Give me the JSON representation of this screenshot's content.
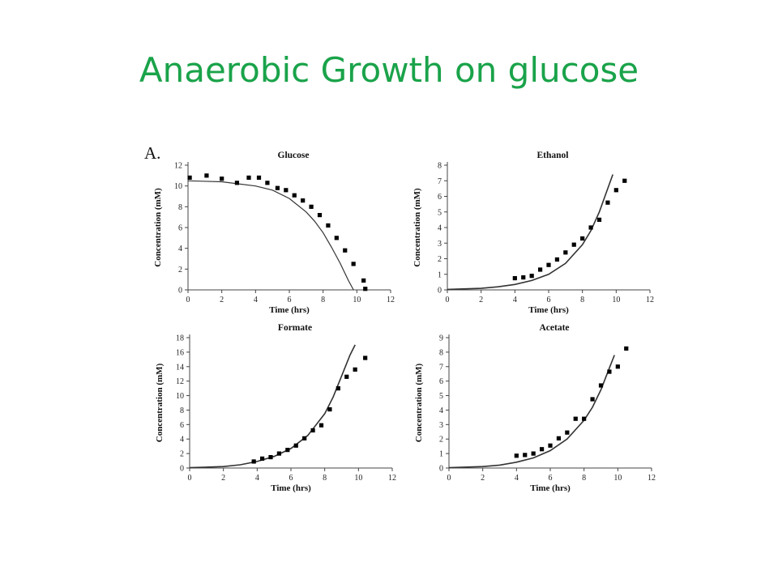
{
  "slide": {
    "title": "Anaerobic Growth on glucose"
  },
  "figure": {
    "panel_letter": "A."
  },
  "chart_data": [
    {
      "type": "scatter",
      "title": "Glucose",
      "xlabel": "Time (hrs)",
      "ylabel": "Concentration (mM)",
      "xlim": [
        0,
        12
      ],
      "ylim": [
        0,
        12
      ],
      "xticks": [
        0,
        2,
        4,
        6,
        8,
        10,
        12
      ],
      "yticks": [
        0,
        2,
        4,
        6,
        8,
        10,
        12
      ],
      "markers": {
        "x": [
          0.1,
          1.1,
          2.0,
          2.9,
          3.6,
          4.2,
          4.7,
          5.3,
          5.8,
          6.3,
          6.8,
          7.3,
          7.8,
          8.3,
          8.8,
          9.3,
          9.8,
          10.4
        ],
        "y": [
          10.8,
          11.0,
          10.7,
          10.3,
          10.8,
          10.8,
          10.3,
          9.8,
          9.6,
          9.1,
          8.6,
          8.0,
          7.2,
          6.2,
          5.0,
          3.8,
          2.5,
          0.9
        ]
      },
      "extra_markers": {
        "x": [
          10.5
        ],
        "y": [
          0.1
        ]
      },
      "fit_curve": {
        "x": [
          0,
          2,
          4,
          5,
          6,
          7,
          7.5,
          8,
          8.5,
          9,
          9.5,
          9.8
        ],
        "y": [
          10.5,
          10.4,
          10.0,
          9.6,
          8.8,
          7.5,
          6.6,
          5.5,
          4.1,
          2.6,
          0.9,
          0
        ]
      }
    },
    {
      "type": "scatter",
      "title": "Ethanol",
      "xlabel": "Time (hrs)",
      "ylabel": "Concentration (mM)",
      "xlim": [
        0,
        12
      ],
      "ylim": [
        0,
        8
      ],
      "xticks": [
        0,
        2,
        4,
        6,
        8,
        10,
        12
      ],
      "yticks": [
        0,
        1,
        2,
        3,
        4,
        5,
        6,
        7,
        8
      ],
      "markers": {
        "x": [
          4.0,
          4.5,
          5.0,
          5.5,
          6.0,
          6.5,
          7.0,
          7.5,
          8.0,
          8.5,
          9.0,
          9.5,
          10.0,
          10.5
        ],
        "y": [
          0.75,
          0.8,
          0.9,
          1.3,
          1.6,
          1.95,
          2.4,
          2.9,
          3.3,
          4.0,
          4.5,
          5.6,
          6.4,
          7.0
        ]
      },
      "fit_curve": {
        "x": [
          0,
          2,
          3,
          4,
          5,
          6,
          7,
          8,
          8.5,
          9,
          9.5,
          9.8
        ],
        "y": [
          0.03,
          0.1,
          0.2,
          0.35,
          0.6,
          1.0,
          1.7,
          2.9,
          3.8,
          5.0,
          6.5,
          7.4
        ]
      }
    },
    {
      "type": "scatter",
      "title": "Formate",
      "xlabel": "Time (hrs)",
      "ylabel": "Concentration (mM)",
      "xlim": [
        0,
        12
      ],
      "ylim": [
        0,
        18
      ],
      "xticks": [
        0,
        2,
        4,
        6,
        8,
        10,
        12
      ],
      "yticks": [
        0,
        2,
        4,
        6,
        8,
        10,
        12,
        14,
        16,
        18
      ],
      "markers": {
        "x": [
          3.8,
          4.3,
          4.8,
          5.3,
          5.8,
          6.3,
          6.8,
          7.3,
          7.8,
          8.3,
          8.8,
          9.3,
          9.8,
          10.4
        ],
        "y": [
          0.9,
          1.3,
          1.5,
          2.0,
          2.5,
          3.1,
          4.1,
          5.2,
          5.9,
          8.1,
          11.0,
          12.6,
          13.6,
          15.2
        ]
      },
      "fit_curve": {
        "x": [
          0,
          2,
          3,
          4,
          5,
          6,
          7,
          8,
          8.5,
          9,
          9.5,
          9.8
        ],
        "y": [
          0.05,
          0.2,
          0.45,
          0.9,
          1.6,
          2.7,
          4.5,
          7.5,
          9.8,
          12.7,
          15.6,
          17.0
        ]
      }
    },
    {
      "type": "scatter",
      "title": "Acetate",
      "xlabel": "Time (hrs)",
      "ylabel": "Concentration (mM)",
      "xlim": [
        0,
        12
      ],
      "ylim": [
        0,
        9
      ],
      "xticks": [
        0,
        2,
        4,
        6,
        8,
        10,
        12
      ],
      "yticks": [
        0,
        1,
        2,
        3,
        4,
        5,
        6,
        7,
        8,
        9
      ],
      "markers": {
        "x": [
          4.0,
          4.5,
          5.0,
          5.5,
          6.0,
          6.5,
          7.0,
          7.5,
          8.0,
          8.5,
          9.0,
          9.5,
          10.0,
          10.5
        ],
        "y": [
          0.85,
          0.9,
          1.0,
          1.3,
          1.55,
          2.05,
          2.45,
          3.4,
          3.4,
          4.75,
          5.7,
          6.65,
          7.0,
          8.25
        ]
      },
      "fit_curve": {
        "x": [
          0,
          2,
          3,
          4,
          5,
          6,
          7,
          8,
          8.5,
          9,
          9.5,
          9.8
        ],
        "y": [
          0.03,
          0.1,
          0.2,
          0.4,
          0.7,
          1.2,
          2.0,
          3.3,
          4.2,
          5.4,
          6.9,
          7.8
        ]
      }
    }
  ]
}
